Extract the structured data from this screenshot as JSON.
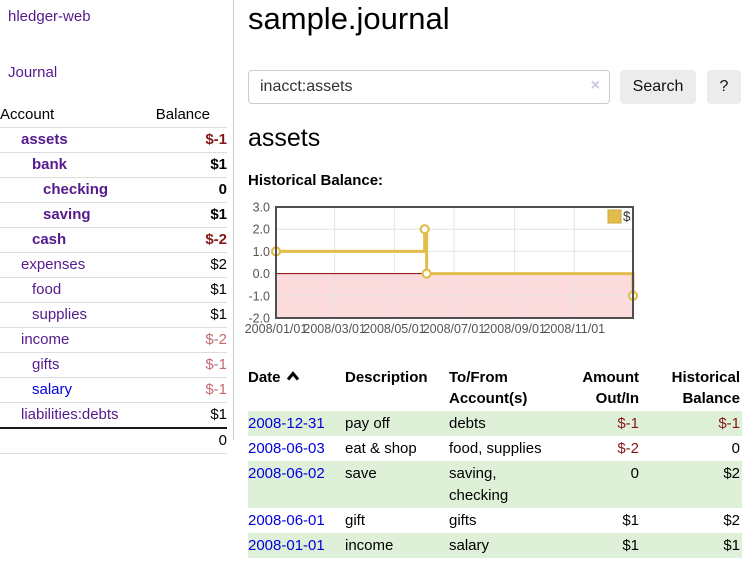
{
  "sidebar": {
    "app_title": "hledger-web",
    "nav": {
      "journal_label": "Journal"
    },
    "table": {
      "account_header": "Account",
      "balance_header": "Balance",
      "accounts": [
        {
          "name": "assets",
          "level": 1,
          "bold": true,
          "balance": "$-1",
          "balance_style": "negative",
          "link_style": "visited"
        },
        {
          "name": "bank",
          "level": 2,
          "bold": true,
          "balance": "$1",
          "balance_style": "positive",
          "link_style": "visited"
        },
        {
          "name": "checking",
          "level": 3,
          "bold": true,
          "balance": "0",
          "balance_style": "positive",
          "link_style": "visited"
        },
        {
          "name": "saving",
          "level": 3,
          "bold": true,
          "balance": "$1",
          "balance_style": "positive",
          "link_style": "visited"
        },
        {
          "name": "cash",
          "level": 2,
          "bold": true,
          "balance": "$-2",
          "balance_style": "negative",
          "link_style": "visited"
        },
        {
          "name": "expenses",
          "level": 1,
          "bold": false,
          "balance": "$2",
          "balance_style": "positive",
          "link_style": "visited"
        },
        {
          "name": "food",
          "level": 2,
          "bold": false,
          "balance": "$1",
          "balance_style": "positive",
          "link_style": "visited"
        },
        {
          "name": "supplies",
          "level": 2,
          "bold": false,
          "balance": "$1",
          "balance_style": "positive",
          "link_style": "visited"
        },
        {
          "name": "income",
          "level": 1,
          "bold": false,
          "balance": "$-2",
          "balance_style": "negative-light",
          "link_style": "visited"
        },
        {
          "name": "gifts",
          "level": 2,
          "bold": false,
          "balance": "$-1",
          "balance_style": "negative-light",
          "link_style": "visited"
        },
        {
          "name": "salary",
          "level": 2,
          "bold": false,
          "balance": "$-1",
          "balance_style": "negative-light",
          "link_style": "unvisited"
        },
        {
          "name": "liabilities:debts",
          "level": 1,
          "bold": false,
          "balance": "$1",
          "balance_style": "positive",
          "link_style": "visited"
        }
      ],
      "total": "0"
    }
  },
  "main": {
    "title": "sample.journal",
    "search": {
      "value": "inacct:assets",
      "clear_label": "×",
      "button_label": "Search",
      "help_label": "?"
    },
    "account_heading": "assets",
    "chart_title": "Historical Balance:"
  },
  "chart_data": {
    "type": "line",
    "step": true,
    "title": "Historical Balance",
    "legend": "$",
    "legend_position": "top-right",
    "grid": true,
    "x_range": [
      "2008-01-01",
      "2008-12-31"
    ],
    "y_range": [
      -2,
      3
    ],
    "series": [
      {
        "name": "$",
        "color": "#e3bd4c",
        "points": [
          {
            "date": "2008-01-01",
            "value": 1
          },
          {
            "date": "2008-06-01",
            "value": 2
          },
          {
            "date": "2008-06-03",
            "value": 0
          },
          {
            "date": "2008-12-31",
            "value": -1
          }
        ]
      }
    ],
    "x_ticks": [
      {
        "date": "2008-01-01",
        "label": "2008/01/01"
      },
      {
        "date": "2008-03-01",
        "label": "2008/03/01"
      },
      {
        "date": "2008-05-01",
        "label": "2008/05/01"
      },
      {
        "date": "2008-07-01",
        "label": "2008/07/01"
      },
      {
        "date": "2008-09-01",
        "label": "2008/09/01"
      },
      {
        "date": "2008-11-01",
        "label": "2008/11/01"
      }
    ],
    "y_ticks": [
      {
        "value": 3,
        "label": "3.0"
      },
      {
        "value": 2,
        "label": "2.0"
      },
      {
        "value": 1,
        "label": "1.0"
      },
      {
        "value": 0,
        "label": "0.0"
      },
      {
        "value": -1,
        "label": "-1.0"
      },
      {
        "value": -2,
        "label": "-2.0"
      }
    ],
    "colors": {
      "negative_region": "#fbdbdb",
      "zero_line": "#8b0000",
      "gridline": "#e4e4e4",
      "plot_border": "#4f4f4f",
      "tick_text": "#555555",
      "marker_fill": "#ffffff"
    }
  },
  "transactions": {
    "columns": [
      {
        "lines": [
          "Date"
        ],
        "align": "left",
        "sort_icon": true
      },
      {
        "lines": [
          "Description"
        ],
        "align": "left",
        "sort_icon": false
      },
      {
        "lines": [
          "To/From",
          "Account(s)"
        ],
        "align": "left",
        "sort_icon": false
      },
      {
        "lines": [
          "Amount",
          "Out/In"
        ],
        "align": "right",
        "sort_icon": false
      },
      {
        "lines": [
          "Historical",
          "Balance"
        ],
        "align": "right",
        "sort_icon": false
      }
    ],
    "rows": [
      {
        "date": "2008-12-31",
        "description": "pay off",
        "accounts": "debts",
        "amount": "$-1",
        "amount_negative": true,
        "balance": "$-1",
        "balance_negative": true
      },
      {
        "date": "2008-06-03",
        "description": "eat & shop",
        "accounts": "food, supplies",
        "amount": "$-2",
        "amount_negative": true,
        "balance": "0",
        "balance_negative": false
      },
      {
        "date": "2008-06-02",
        "description": "save",
        "accounts": "saving, checking",
        "amount": "0",
        "amount_negative": false,
        "balance": "$2",
        "balance_negative": false
      },
      {
        "date": "2008-06-01",
        "description": "gift",
        "accounts": "gifts",
        "amount": "$1",
        "amount_negative": false,
        "balance": "$2",
        "balance_negative": false
      },
      {
        "date": "2008-01-01",
        "description": "income",
        "accounts": "salary",
        "amount": "$1",
        "amount_negative": false,
        "balance": "$1",
        "balance_negative": false
      }
    ]
  }
}
